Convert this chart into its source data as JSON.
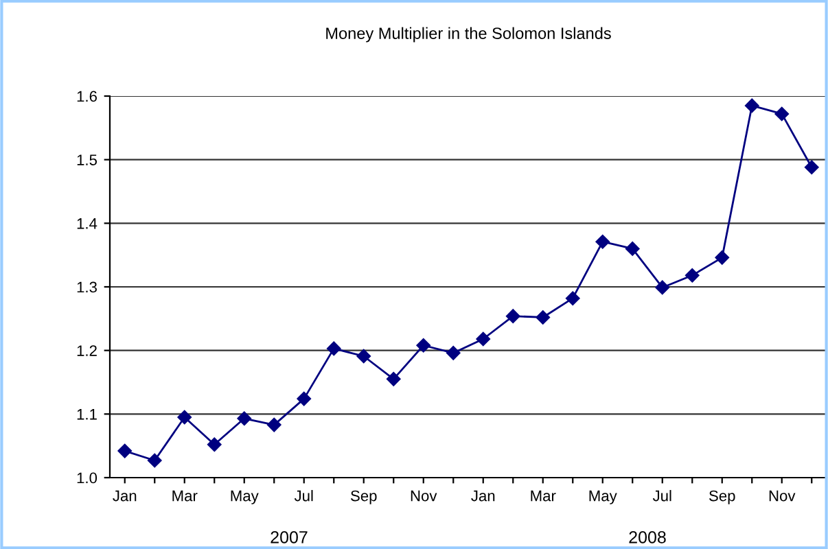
{
  "chart_data": {
    "type": "line",
    "title": "Money Multiplier in the Solomon Islands",
    "categories": [
      "Jan",
      null,
      "Mar",
      null,
      "May",
      null,
      "Jul",
      null,
      "Sep",
      null,
      "Nov",
      null,
      "Jan",
      null,
      "Mar",
      null,
      "May",
      null,
      "Jul",
      null,
      "Sep",
      null,
      "Nov",
      null
    ],
    "series": [
      {
        "color": "#000080",
        "values": [
          1.042,
          1.027,
          1.095,
          1.052,
          1.093,
          1.083,
          1.124,
          1.203,
          1.191,
          1.155,
          1.208,
          1.196,
          1.218,
          1.254,
          1.252,
          1.282,
          1.371,
          1.36,
          1.299,
          1.318,
          1.346,
          1.585,
          1.572,
          1.488
        ]
      }
    ],
    "annotations": [
      "2007",
      "2008"
    ],
    "ylim": [
      1.0,
      1.6
    ],
    "yticks": [
      {
        "value": 1.0,
        "label": "1.0"
      },
      1.1,
      1.2,
      1.3,
      1.4,
      1.5,
      1.6
    ],
    "grid": "y",
    "marker": "diamond",
    "line_style": "solid"
  }
}
